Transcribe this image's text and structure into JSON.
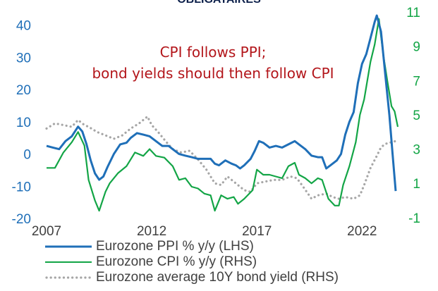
{
  "page_title_fragment": "OBLIGATAIRES",
  "colors": {
    "ppi": "#1f6fb8",
    "cpi": "#13a546",
    "bond": "#a6a6a6",
    "annotation": "#b3161b",
    "left_axis_text": "#1f6fb8",
    "right_axis_text": "#13a546",
    "x_axis_text": "#404040"
  },
  "chart_data": {
    "type": "line",
    "annotation": [
      "CPI follows PPI;",
      "bond yields should then follow CPI"
    ],
    "x_ticks": [
      2007,
      2012,
      2017,
      2022
    ],
    "xlim": [
      2007,
      2023.8
    ],
    "y_left": {
      "lim": [
        -20,
        43
      ],
      "ticks": [
        -20,
        -10,
        0,
        10,
        20,
        30,
        40
      ]
    },
    "y_right": {
      "lim": [
        -1.05,
        10.8
      ],
      "ticks": [
        -1,
        1,
        3,
        5,
        7,
        9,
        11
      ]
    },
    "legend_position": "bottom",
    "series": [
      {
        "key": "ppi",
        "name": "Eurozone PPI % y/y (LHS)",
        "axis": "left",
        "style": "solid",
        "points": [
          [
            2007.0,
            2.5
          ],
          [
            2007.3,
            2.0
          ],
          [
            2007.6,
            1.5
          ],
          [
            2007.9,
            4.0
          ],
          [
            2008.2,
            5.5
          ],
          [
            2008.5,
            8.5
          ],
          [
            2008.7,
            7.0
          ],
          [
            2008.9,
            3.0
          ],
          [
            2009.1,
            -2.0
          ],
          [
            2009.3,
            -6.0
          ],
          [
            2009.5,
            -8.0
          ],
          [
            2009.7,
            -7.0
          ],
          [
            2009.9,
            -4.0
          ],
          [
            2010.2,
            0.0
          ],
          [
            2010.5,
            3.0
          ],
          [
            2010.8,
            3.5
          ],
          [
            2011.0,
            5.0
          ],
          [
            2011.3,
            6.5
          ],
          [
            2011.6,
            6.0
          ],
          [
            2011.9,
            5.5
          ],
          [
            2012.2,
            4.0
          ],
          [
            2012.5,
            2.5
          ],
          [
            2012.8,
            2.5
          ],
          [
            2013.0,
            1.5
          ],
          [
            2013.3,
            0.0
          ],
          [
            2013.6,
            -0.5
          ],
          [
            2013.9,
            -1.0
          ],
          [
            2014.2,
            -1.5
          ],
          [
            2014.5,
            -1.5
          ],
          [
            2014.8,
            -1.5
          ],
          [
            2015.0,
            -3.0
          ],
          [
            2015.2,
            -3.5
          ],
          [
            2015.5,
            -2.0
          ],
          [
            2015.8,
            -3.0
          ],
          [
            2016.0,
            -3.5
          ],
          [
            2016.2,
            -4.5
          ],
          [
            2016.4,
            -3.5
          ],
          [
            2016.7,
            -1.5
          ],
          [
            2016.9,
            1.0
          ],
          [
            2017.1,
            4.0
          ],
          [
            2017.3,
            3.5
          ],
          [
            2017.6,
            2.0
          ],
          [
            2017.9,
            2.5
          ],
          [
            2018.2,
            2.0
          ],
          [
            2018.5,
            3.0
          ],
          [
            2018.8,
            4.0
          ],
          [
            2019.0,
            3.0
          ],
          [
            2019.3,
            1.5
          ],
          [
            2019.6,
            -0.5
          ],
          [
            2019.9,
            -1.0
          ],
          [
            2020.1,
            -1.0
          ],
          [
            2020.3,
            -4.5
          ],
          [
            2020.5,
            -3.5
          ],
          [
            2020.8,
            -2.0
          ],
          [
            2021.0,
            0.0
          ],
          [
            2021.2,
            6.0
          ],
          [
            2021.4,
            10.0
          ],
          [
            2021.6,
            13.0
          ],
          [
            2021.8,
            22.0
          ],
          [
            2022.0,
            28.0
          ],
          [
            2022.2,
            31.0
          ],
          [
            2022.4,
            36.0
          ],
          [
            2022.6,
            41.0
          ],
          [
            2022.7,
            43.0
          ],
          [
            2022.9,
            38.0
          ],
          [
            2023.1,
            25.0
          ],
          [
            2023.3,
            12.0
          ],
          [
            2023.45,
            0.0
          ],
          [
            2023.6,
            -11.5
          ]
        ]
      },
      {
        "key": "cpi",
        "name": "Eurozone CPI % y/y (RHS)",
        "axis": "right",
        "style": "solid",
        "points": [
          [
            2007.0,
            1.9
          ],
          [
            2007.4,
            1.9
          ],
          [
            2007.8,
            2.8
          ],
          [
            2008.2,
            3.4
          ],
          [
            2008.5,
            4.0
          ],
          [
            2008.8,
            3.2
          ],
          [
            2009.0,
            1.2
          ],
          [
            2009.3,
            0.0
          ],
          [
            2009.5,
            -0.6
          ],
          [
            2009.8,
            0.5
          ],
          [
            2010.0,
            1.0
          ],
          [
            2010.4,
            1.6
          ],
          [
            2010.8,
            2.0
          ],
          [
            2011.2,
            2.8
          ],
          [
            2011.6,
            2.6
          ],
          [
            2011.9,
            3.0
          ],
          [
            2012.2,
            2.6
          ],
          [
            2012.6,
            2.5
          ],
          [
            2013.0,
            2.0
          ],
          [
            2013.3,
            1.2
          ],
          [
            2013.6,
            1.3
          ],
          [
            2013.9,
            0.8
          ],
          [
            2014.2,
            0.7
          ],
          [
            2014.5,
            0.4
          ],
          [
            2014.8,
            0.3
          ],
          [
            2015.0,
            -0.6
          ],
          [
            2015.3,
            0.3
          ],
          [
            2015.6,
            0.1
          ],
          [
            2015.9,
            0.2
          ],
          [
            2016.1,
            -0.2
          ],
          [
            2016.4,
            0.1
          ],
          [
            2016.8,
            0.6
          ],
          [
            2017.0,
            1.8
          ],
          [
            2017.3,
            1.5
          ],
          [
            2017.6,
            1.5
          ],
          [
            2017.9,
            1.4
          ],
          [
            2018.2,
            1.3
          ],
          [
            2018.5,
            2.0
          ],
          [
            2018.8,
            2.2
          ],
          [
            2019.0,
            1.5
          ],
          [
            2019.3,
            1.3
          ],
          [
            2019.6,
            1.0
          ],
          [
            2019.9,
            1.3
          ],
          [
            2020.1,
            1.2
          ],
          [
            2020.4,
            0.1
          ],
          [
            2020.7,
            -0.3
          ],
          [
            2020.9,
            -0.3
          ],
          [
            2021.1,
            0.9
          ],
          [
            2021.4,
            2.0
          ],
          [
            2021.7,
            3.4
          ],
          [
            2021.9,
            5.0
          ],
          [
            2022.1,
            5.9
          ],
          [
            2022.4,
            8.1
          ],
          [
            2022.6,
            9.1
          ],
          [
            2022.8,
            10.6
          ],
          [
            2023.0,
            8.6
          ],
          [
            2023.2,
            7.0
          ],
          [
            2023.4,
            5.5
          ],
          [
            2023.55,
            5.2
          ],
          [
            2023.7,
            4.3
          ]
        ]
      },
      {
        "key": "bond",
        "name": "Eurozone average 10Y bond yield (RHS)",
        "axis": "right",
        "style": "dotted",
        "points": [
          [
            2007.0,
            4.2
          ],
          [
            2007.4,
            4.5
          ],
          [
            2007.8,
            4.4
          ],
          [
            2008.2,
            4.3
          ],
          [
            2008.5,
            4.7
          ],
          [
            2008.8,
            4.4
          ],
          [
            2009.0,
            4.3
          ],
          [
            2009.4,
            4.0
          ],
          [
            2009.8,
            3.8
          ],
          [
            2010.2,
            3.6
          ],
          [
            2010.6,
            3.8
          ],
          [
            2011.0,
            4.2
          ],
          [
            2011.4,
            4.5
          ],
          [
            2011.8,
            4.9
          ],
          [
            2012.0,
            4.4
          ],
          [
            2012.3,
            4.0
          ],
          [
            2012.7,
            3.4
          ],
          [
            2013.0,
            3.0
          ],
          [
            2013.4,
            2.8
          ],
          [
            2013.8,
            2.9
          ],
          [
            2014.2,
            2.4
          ],
          [
            2014.6,
            1.8
          ],
          [
            2015.0,
            1.0
          ],
          [
            2015.3,
            0.9
          ],
          [
            2015.6,
            1.4
          ],
          [
            2016.0,
            1.0
          ],
          [
            2016.4,
            0.6
          ],
          [
            2016.7,
            0.5
          ],
          [
            2017.0,
            1.0
          ],
          [
            2017.4,
            1.1
          ],
          [
            2017.8,
            1.2
          ],
          [
            2018.2,
            1.2
          ],
          [
            2018.6,
            1.4
          ],
          [
            2018.9,
            1.3
          ],
          [
            2019.2,
            0.8
          ],
          [
            2019.6,
            0.1
          ],
          [
            2019.9,
            0.3
          ],
          [
            2020.3,
            0.4
          ],
          [
            2020.6,
            0.2
          ],
          [
            2020.9,
            0.1
          ],
          [
            2021.2,
            0.2
          ],
          [
            2021.6,
            0.1
          ],
          [
            2021.9,
            0.3
          ],
          [
            2022.1,
            0.9
          ],
          [
            2022.4,
            1.9
          ],
          [
            2022.7,
            2.6
          ],
          [
            2022.9,
            3.1
          ],
          [
            2023.1,
            3.3
          ],
          [
            2023.4,
            3.4
          ],
          [
            2023.7,
            3.5
          ]
        ]
      }
    ]
  }
}
